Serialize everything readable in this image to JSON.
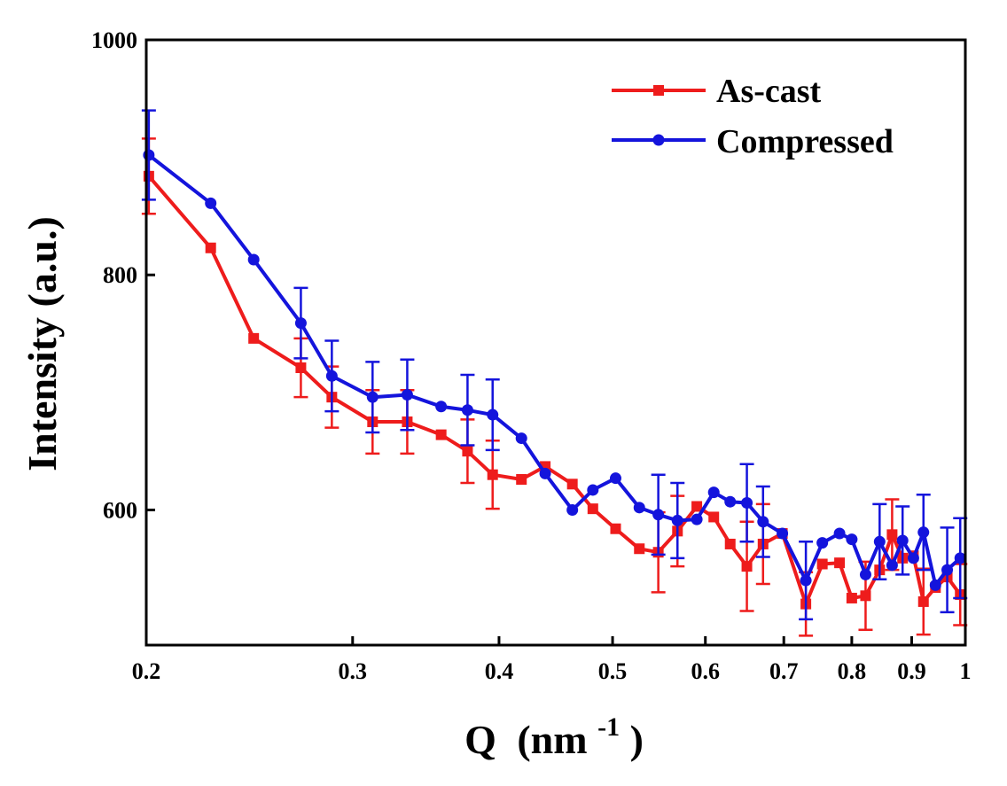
{
  "chart_data": {
    "type": "line",
    "title": "",
    "xlabel": "Q",
    "xlabel_unit": "(nm",
    "xlabel_sup": "-1",
    "xlabel_close": ")",
    "ylabel": "Intensity (a.u.)",
    "xscale": "log",
    "xlim": [
      0.2,
      1.0
    ],
    "ylim": [
      485,
      1000
    ],
    "x_ticks": [
      0.2,
      0.3,
      0.4,
      0.5,
      0.6,
      0.7,
      0.8,
      0.9,
      1
    ],
    "x_tick_labels": [
      "0.2",
      "0.3",
      "0.4",
      "0.5",
      "0.6",
      "0.7",
      "0.8",
      "0.9",
      "1"
    ],
    "y_ticks": [
      600,
      800,
      1000
    ],
    "y_tick_labels": [
      "600",
      "800",
      "1000"
    ],
    "legend_position": "top-right",
    "series": [
      {
        "name": "As-cast",
        "color": "#ee1c1c",
        "marker": "square",
        "points": [
          [
            0.201,
            884,
            32
          ],
          [
            0.227,
            823,
            0
          ],
          [
            0.247,
            746,
            0
          ],
          [
            0.271,
            721,
            25
          ],
          [
            0.288,
            696,
            26
          ],
          [
            0.312,
            675,
            27
          ],
          [
            0.334,
            675,
            27
          ],
          [
            0.357,
            664,
            0
          ],
          [
            0.376,
            650,
            27
          ],
          [
            0.395,
            630,
            29
          ],
          [
            0.418,
            626,
            0
          ],
          [
            0.438,
            637,
            0
          ],
          [
            0.462,
            622,
            0
          ],
          [
            0.481,
            601,
            0
          ],
          [
            0.503,
            584,
            0
          ],
          [
            0.527,
            567,
            0
          ],
          [
            0.547,
            564,
            34
          ],
          [
            0.568,
            582,
            30
          ],
          [
            0.59,
            603,
            0
          ],
          [
            0.61,
            594,
            0
          ],
          [
            0.63,
            571,
            0
          ],
          [
            0.651,
            552,
            38
          ],
          [
            0.672,
            571,
            34
          ],
          [
            0.698,
            580,
            0
          ],
          [
            0.731,
            520,
            27
          ],
          [
            0.755,
            554,
            0
          ],
          [
            0.781,
            555,
            0
          ],
          [
            0.8,
            525,
            0
          ],
          [
            0.822,
            527,
            29
          ],
          [
            0.845,
            549,
            0
          ],
          [
            0.866,
            579,
            30
          ],
          [
            0.884,
            559,
            0
          ],
          [
            0.903,
            561,
            0
          ],
          [
            0.921,
            522,
            28
          ],
          [
            0.943,
            534,
            0
          ],
          [
            0.965,
            543,
            0
          ],
          [
            0.99,
            528,
            26
          ]
        ]
      },
      {
        "name": "Compressed",
        "color": "#1414dc",
        "marker": "circle",
        "points": [
          [
            0.201,
            902,
            38
          ],
          [
            0.227,
            861,
            0
          ],
          [
            0.247,
            813,
            0
          ],
          [
            0.271,
            759,
            30
          ],
          [
            0.288,
            714,
            30
          ],
          [
            0.312,
            696,
            30
          ],
          [
            0.334,
            698,
            30
          ],
          [
            0.357,
            688,
            0
          ],
          [
            0.376,
            685,
            30
          ],
          [
            0.395,
            681,
            30
          ],
          [
            0.418,
            661,
            0
          ],
          [
            0.438,
            631,
            0
          ],
          [
            0.462,
            600,
            0
          ],
          [
            0.481,
            617,
            0
          ],
          [
            0.503,
            627,
            0
          ],
          [
            0.527,
            602,
            0
          ],
          [
            0.547,
            596,
            34
          ],
          [
            0.568,
            591,
            32
          ],
          [
            0.59,
            592,
            0
          ],
          [
            0.61,
            615,
            0
          ],
          [
            0.63,
            607,
            0
          ],
          [
            0.651,
            606,
            33
          ],
          [
            0.672,
            590,
            30
          ],
          [
            0.698,
            580,
            0
          ],
          [
            0.731,
            540,
            33
          ],
          [
            0.755,
            572,
            0
          ],
          [
            0.781,
            580,
            0
          ],
          [
            0.8,
            575,
            0
          ],
          [
            0.822,
            545,
            0
          ],
          [
            0.845,
            573,
            32
          ],
          [
            0.866,
            553,
            0
          ],
          [
            0.884,
            574,
            29
          ],
          [
            0.903,
            559,
            0
          ],
          [
            0.921,
            581,
            32
          ],
          [
            0.943,
            536,
            0
          ],
          [
            0.965,
            549,
            36
          ],
          [
            0.99,
            559,
            34
          ]
        ]
      }
    ]
  }
}
